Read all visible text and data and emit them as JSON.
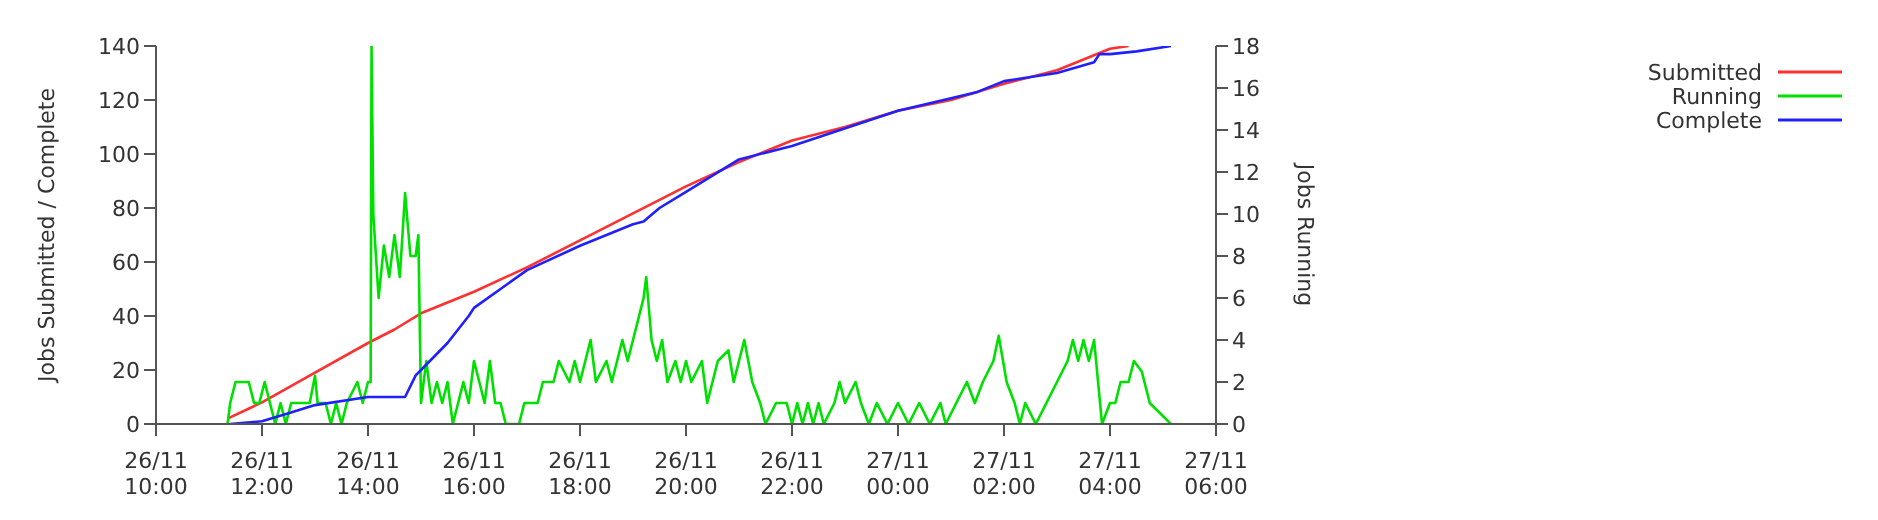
{
  "chart_data": {
    "type": "line",
    "ylabel": "Jobs Submitted / Complete",
    "y2label": "Jobs Running",
    "xlim": [
      "--11-26T10:00",
      "--11-27T06:00"
    ],
    "xticks": [
      {
        "value": "--11-26T10:00",
        "label": "26/11\n10:00"
      },
      {
        "value": "--11-26T12:00",
        "label": "26/11\n12:00"
      },
      {
        "value": "--11-26T14:00",
        "label": "26/11\n14:00"
      },
      {
        "value": "--11-26T16:00",
        "label": "26/11\n16:00"
      },
      {
        "value": "--11-26T18:00",
        "label": "26/11\n18:00"
      },
      {
        "value": "--11-26T20:00",
        "label": "26/11\n20:00"
      },
      {
        "value": "--11-26T22:00",
        "label": "26/11\n22:00"
      },
      {
        "value": "--11-27T00:00",
        "label": "27/11\n00:00"
      },
      {
        "value": "--11-27T02:00",
        "label": "27/11\n02:00"
      },
      {
        "value": "--11-27T04:00",
        "label": "27/11\n04:00"
      },
      {
        "value": "--11-27T06:00",
        "label": "27/11\n06:00"
      }
    ],
    "ylim": [
      0,
      140
    ],
    "yticks": [
      0,
      20,
      40,
      60,
      80,
      100,
      120,
      140
    ],
    "y2lim": [
      0,
      18
    ],
    "y2ticks": [
      0,
      2,
      4,
      6,
      8,
      10,
      12,
      14,
      16,
      18
    ],
    "legend": "top right",
    "marker": "none",
    "line_style": "solid",
    "series": [
      {
        "name": "Submitted",
        "color": "#ff3030",
        "axis": "y",
        "x": [
          "--11-26T11:21",
          "--11-26T12:00",
          "--11-26T13:00",
          "--11-26T14:00",
          "--11-26T14:30",
          "--11-26T15:00",
          "--11-26T15:30",
          "--11-26T16:00",
          "--11-26T17:00",
          "--11-26T18:00",
          "--11-26T19:00",
          "--11-26T20:00",
          "--11-26T21:00",
          "--11-26T22:00",
          "--11-26T23:00",
          "--11-27T00:00",
          "--11-27T01:00",
          "--11-27T02:00",
          "--11-27T03:00",
          "--11-27T04:00",
          "--11-27T04:21"
        ],
        "values": [
          2,
          8,
          19,
          30,
          35,
          41,
          45,
          49,
          58,
          68,
          78,
          88,
          97,
          105,
          110,
          116,
          120,
          126,
          131,
          139,
          140
        ]
      },
      {
        "name": "Running",
        "color": "#00e000",
        "axis": "y2",
        "x": [
          "--11-26T11:21",
          "--11-26T11:24",
          "--11-26T11:30",
          "--11-26T11:45",
          "--11-26T11:51",
          "--11-26T11:57",
          "--11-26T12:03",
          "--11-26T12:09",
          "--11-26T12:15",
          "--11-26T12:21",
          "--11-26T12:27",
          "--11-26T12:33",
          "--11-26T12:54",
          "--11-26T13:00",
          "--11-26T13:03",
          "--11-26T13:12",
          "--11-26T13:18",
          "--11-26T13:24",
          "--11-26T13:30",
          "--11-26T13:36",
          "--11-26T13:48",
          "--11-26T13:54",
          "--11-26T14:00",
          "--11-26T14:03",
          "--11-26T14:04",
          "--11-26T14:06",
          "--11-26T14:12",
          "--11-26T14:18",
          "--11-26T14:24",
          "--11-26T14:30",
          "--11-26T14:36",
          "--11-26T14:42",
          "--11-26T14:48",
          "--11-26T14:54",
          "--11-26T14:57",
          "--11-26T15:00",
          "--11-26T15:06",
          "--11-26T15:12",
          "--11-26T15:18",
          "--11-26T15:24",
          "--11-26T15:30",
          "--11-26T15:36",
          "--11-26T15:42",
          "--11-26T15:48",
          "--11-26T15:54",
          "--11-26T16:00",
          "--11-26T16:06",
          "--11-26T16:12",
          "--11-26T16:18",
          "--11-26T16:24",
          "--11-26T16:30",
          "--11-26T16:36",
          "--11-26T16:51",
          "--11-26T16:57",
          "--11-26T17:12",
          "--11-26T17:18",
          "--11-26T17:30",
          "--11-26T17:36",
          "--11-26T17:48",
          "--11-26T17:54",
          "--11-26T18:00",
          "--11-26T18:12",
          "--11-26T18:18",
          "--11-26T18:30",
          "--11-26T18:36",
          "--11-26T18:48",
          "--11-26T18:54",
          "--11-26T19:00",
          "--11-26T19:12",
          "--11-26T19:15",
          "--11-26T19:21",
          "--11-26T19:27",
          "--11-26T19:33",
          "--11-26T19:39",
          "--11-26T19:48",
          "--11-26T19:54",
          "--11-26T20:00",
          "--11-26T20:06",
          "--11-26T20:18",
          "--11-26T20:24",
          "--11-26T20:36",
          "--11-26T20:48",
          "--11-26T20:54",
          "--11-26T21:00",
          "--11-26T21:06",
          "--11-26T21:15",
          "--11-26T21:24",
          "--11-26T21:30",
          "--11-26T21:42",
          "--11-26T21:54",
          "--11-26T22:00",
          "--11-26T22:06",
          "--11-26T22:12",
          "--11-26T22:18",
          "--11-26T22:24",
          "--11-26T22:30",
          "--11-26T22:36",
          "--11-26T22:48",
          "--11-26T22:54",
          "--11-26T23:00",
          "--11-26T23:12",
          "--11-26T23:18",
          "--11-26T23:27",
          "--11-26T23:36",
          "--11-26T23:48",
          "--11-27T00:00",
          "--11-27T00:12",
          "--11-27T00:24",
          "--11-27T00:36",
          "--11-27T00:48",
          "--11-27T00:54",
          "--11-27T01:06",
          "--11-27T01:18",
          "--11-27T01:27",
          "--11-27T01:36",
          "--11-27T01:48",
          "--11-27T01:54",
          "--11-27T02:03",
          "--11-27T02:12",
          "--11-27T02:18",
          "--11-27T02:24",
          "--11-27T02:36",
          "--11-27T02:48",
          "--11-27T03:00",
          "--11-27T03:12",
          "--11-27T03:18",
          "--11-27T03:24",
          "--11-27T03:30",
          "--11-27T03:36",
          "--11-27T03:42",
          "--11-27T03:51",
          "--11-27T04:00",
          "--11-27T04:06",
          "--11-27T04:12",
          "--11-27T04:21",
          "--11-27T04:27",
          "--11-27T04:36",
          "--11-27T04:45",
          "--11-27T05:09"
        ],
        "values": [
          0,
          1,
          2,
          2,
          1,
          1,
          2,
          1,
          0,
          1,
          0,
          1,
          1,
          2.3,
          1,
          1,
          0,
          1,
          0,
          1,
          2,
          1,
          2,
          2,
          18,
          10,
          6,
          8.5,
          7,
          9,
          7,
          11,
          8,
          8,
          9,
          1,
          3,
          1,
          2,
          1,
          2,
          0,
          1,
          2,
          1,
          3,
          2,
          1,
          3,
          1,
          1,
          0,
          0,
          1,
          1,
          2,
          2,
          3,
          2,
          3,
          2,
          4,
          2,
          3,
          2,
          4,
          3,
          4,
          6,
          7,
          4,
          3,
          4,
          2,
          3,
          2,
          3,
          2,
          3,
          1,
          3,
          3.5,
          2,
          3,
          4,
          2,
          1,
          0,
          1,
          1,
          0,
          1,
          0,
          1,
          0,
          1,
          0,
          1,
          2,
          1,
          2,
          1,
          0,
          1,
          0,
          1,
          0,
          1,
          0,
          1,
          0,
          1,
          2,
          1,
          2,
          3,
          4.2,
          2,
          1,
          0,
          1,
          0,
          1,
          2,
          3,
          4,
          3,
          4,
          3,
          4,
          0,
          1,
          1,
          2,
          2,
          3,
          2.5,
          1,
          0
        ]
      },
      {
        "name": "Complete",
        "color": "#2020ff",
        "axis": "y",
        "x": [
          "--11-26T11:24",
          "--11-26T12:00",
          "--11-26T12:30",
          "--11-26T13:00",
          "--11-26T14:00",
          "--11-26T14:42",
          "--11-26T14:54",
          "--11-26T15:00",
          "--11-26T15:30",
          "--11-26T15:54",
          "--11-26T16:00",
          "--11-26T17:00",
          "--11-26T18:00",
          "--11-26T19:00",
          "--11-26T19:12",
          "--11-26T19:30",
          "--11-26T20:00",
          "--11-26T21:00",
          "--11-26T22:00",
          "--11-27T00:00",
          "--11-27T01:30",
          "--11-27T02:00",
          "--11-27T03:00",
          "--11-27T03:42",
          "--11-27T03:48",
          "--11-27T04:00",
          "--11-27T04:30",
          "--11-27T05:09"
        ],
        "values": [
          0,
          1,
          4,
          7,
          10,
          10,
          18,
          20,
          30,
          40,
          43,
          57,
          66,
          74,
          75,
          80,
          86,
          98,
          103,
          116,
          123,
          127,
          130,
          134,
          137,
          137,
          138,
          140
        ]
      }
    ]
  }
}
